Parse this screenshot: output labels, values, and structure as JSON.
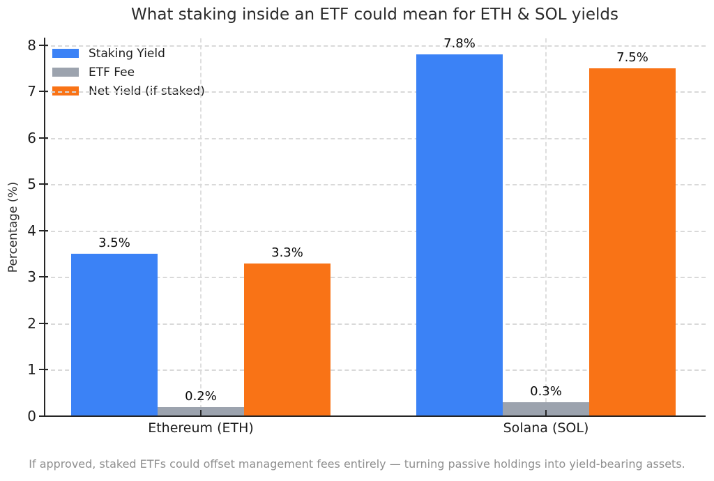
{
  "footer": {
    "text": "If approved, staked ETFs could offset management fees entirely — turning passive holdings into yield-bearing assets."
  },
  "colors": {
    "staking_yield": "#3b82f6",
    "etf_fee": "#9ca3ae",
    "net_yield": "#f97316",
    "axis": "#262626",
    "grid": "#d9d9d9",
    "title_text": "#2b2b2b",
    "footer_text": "#8f8f8f"
  },
  "chart_data": {
    "type": "bar",
    "title": "What staking inside an ETF could mean for ETH & SOL yields",
    "categories": [
      "Ethereum (ETH)",
      "Solana (SOL)"
    ],
    "series": [
      {
        "name": "Staking Yield",
        "color": "#3b82f6",
        "values": [
          3.5,
          7.8
        ],
        "labels": [
          "3.5%",
          "7.8%"
        ]
      },
      {
        "name": "ETF Fee",
        "color": "#9ca3ae",
        "values": [
          0.2,
          0.3
        ],
        "labels": [
          "0.2%",
          "0.3%"
        ]
      },
      {
        "name": "Net Yield (if staked)",
        "color": "#f97316",
        "values": [
          3.3,
          7.5
        ],
        "labels": [
          "3.3%",
          "7.5%"
        ]
      }
    ],
    "xlabel": "",
    "ylabel": "Percentage (%)",
    "ylim": [
      0,
      8.15
    ],
    "yticks": [
      0,
      1,
      2,
      3,
      4,
      5,
      6,
      7,
      8
    ],
    "grid": true,
    "grid_style": "dashed",
    "legend_position": "upper left",
    "legend_frame": false,
    "caption": "If approved, staked ETFs could offset management fees entirely — turning passive holdings into yield-bearing assets."
  }
}
